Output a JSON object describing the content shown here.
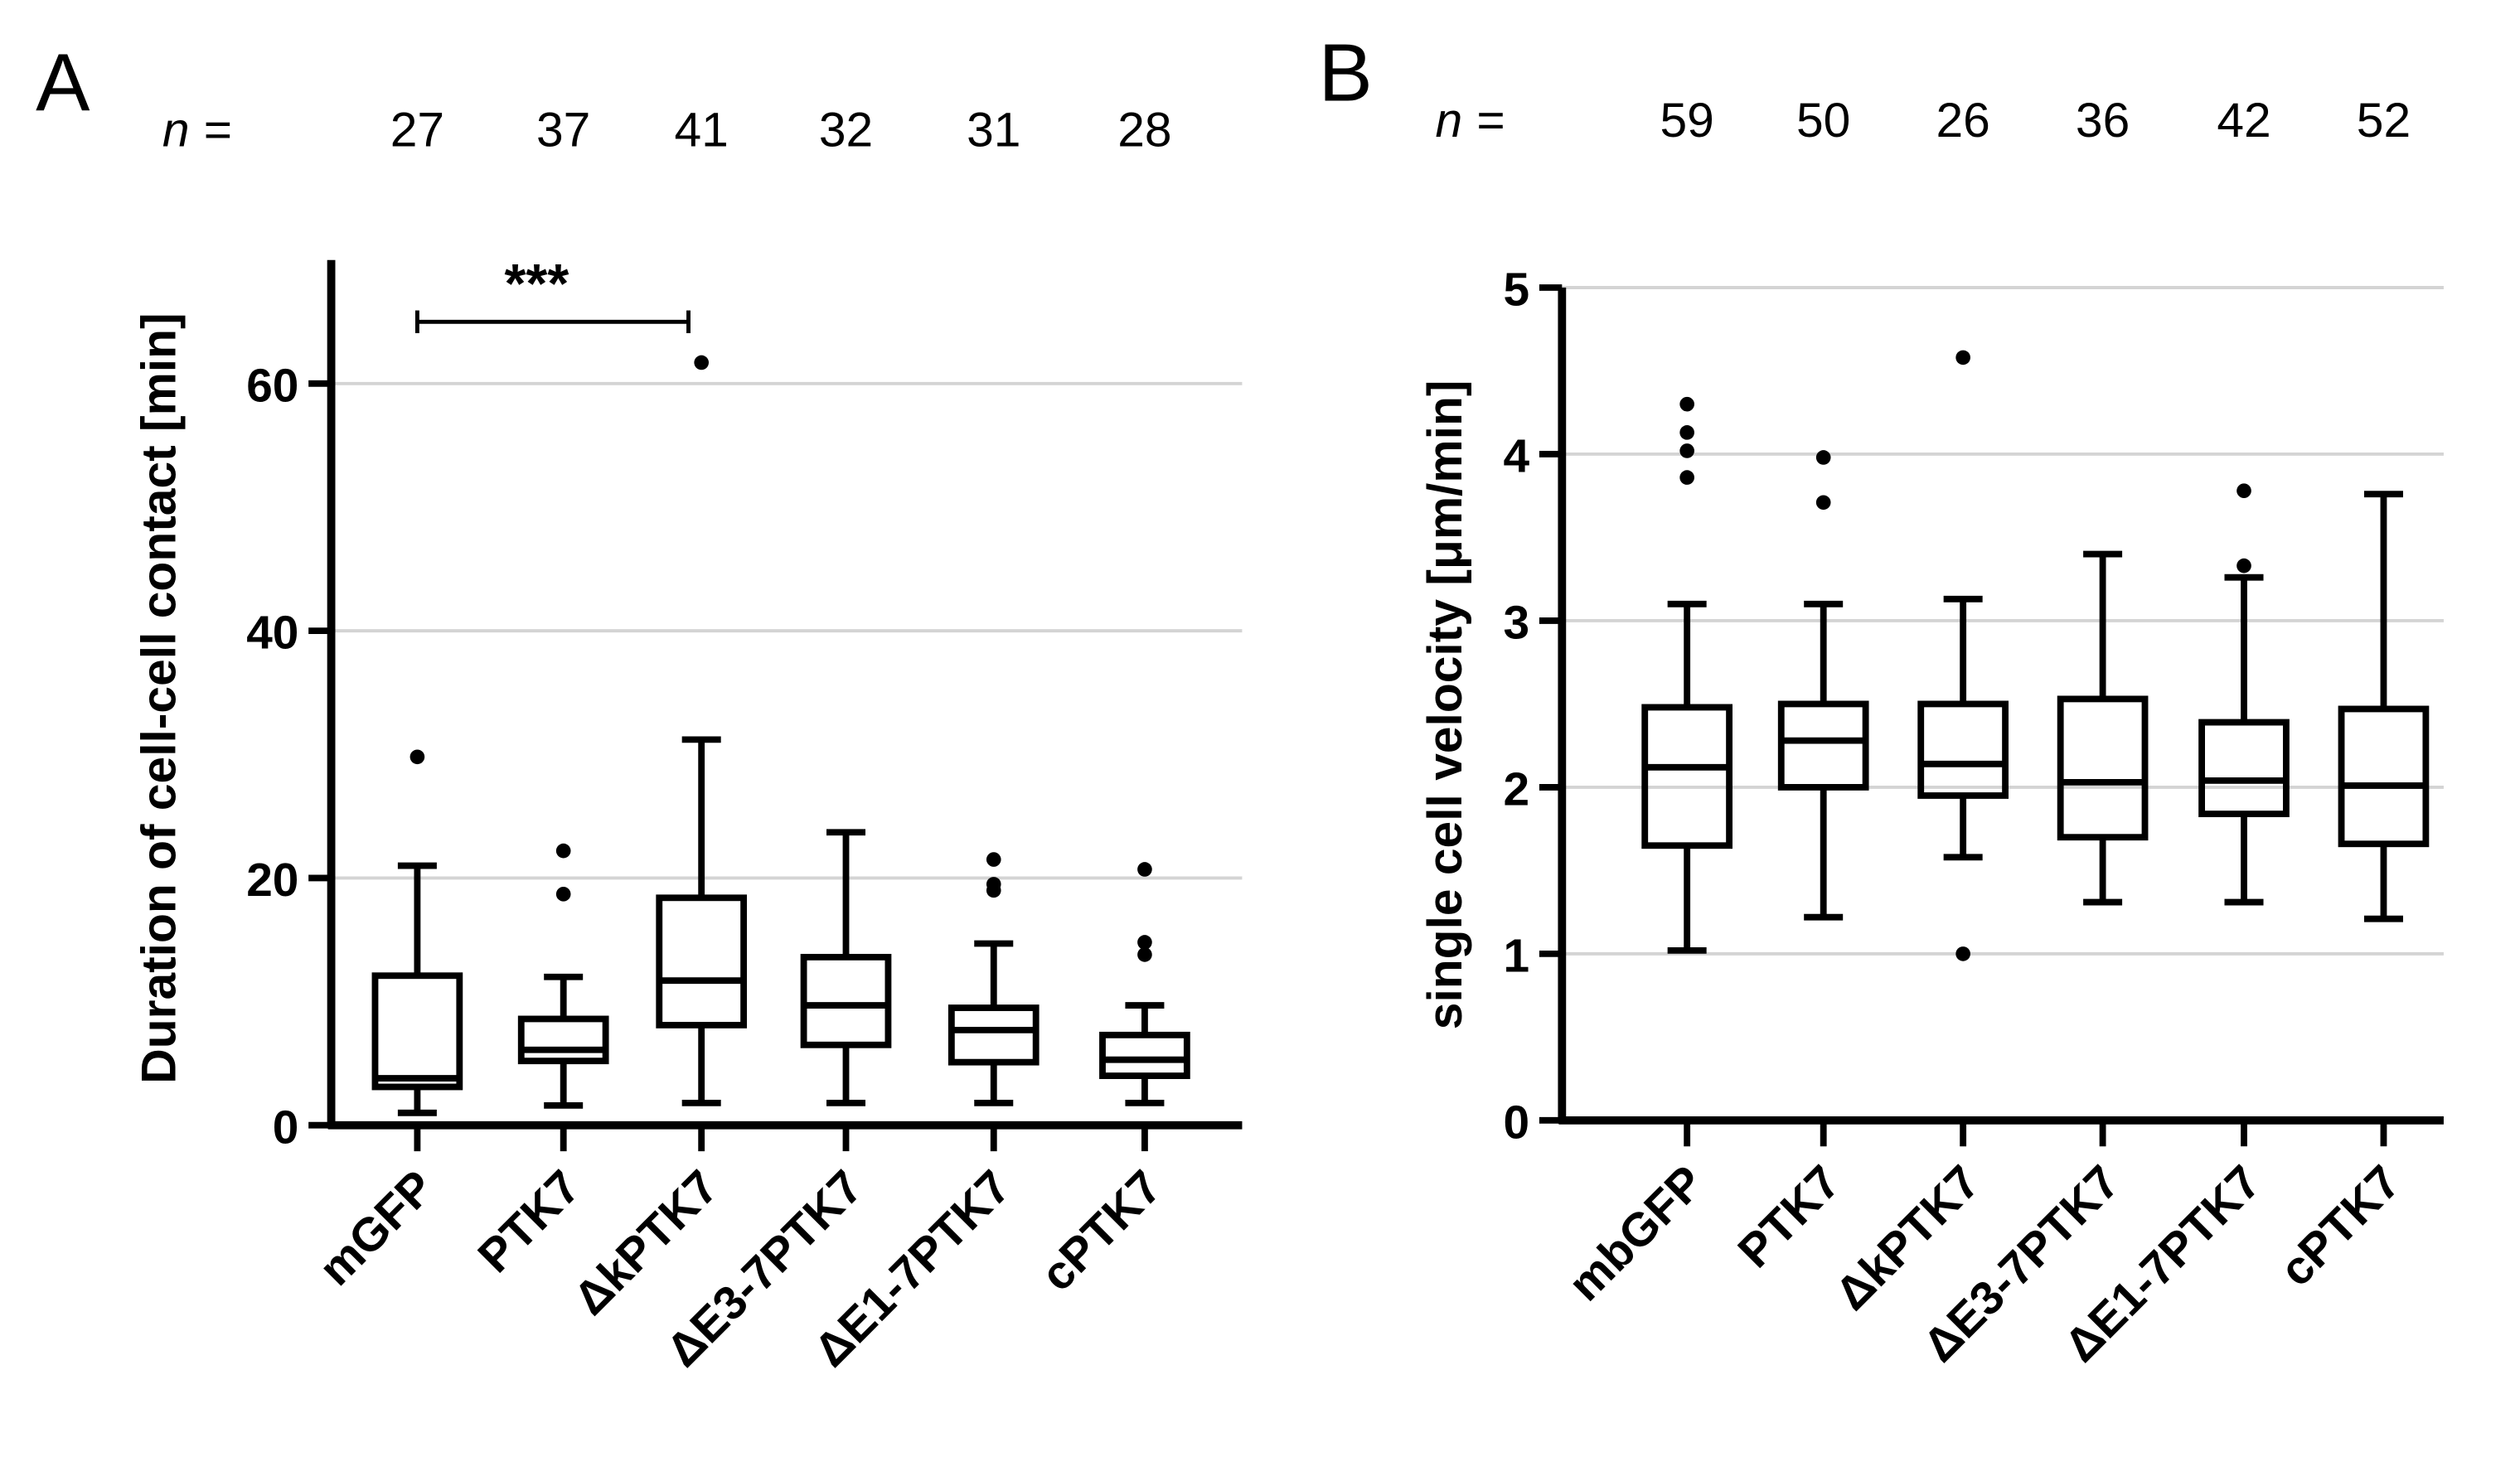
{
  "chart_data": [
    {
      "type": "box",
      "panel_label": "A",
      "n_label": "n =",
      "n": [
        "27",
        "37",
        "41",
        "32",
        "31",
        "28"
      ],
      "categories": [
        "mGFP",
        "PTK7",
        "ΔkPTK7",
        "ΔE3-7PTK7",
        "ΔE1-7PTK7",
        "cPTK7"
      ],
      "ylabel": "Duration of cell-cell contact [min]",
      "ylim": [
        0,
        70
      ],
      "yticks": [
        "0",
        "20",
        "40",
        "60"
      ],
      "grid": true,
      "significance": {
        "from": 0,
        "to": 2,
        "label": "***"
      },
      "boxes": [
        {
          "low": 1.0,
          "q1": 3.1,
          "median": 3.8,
          "q3": 12.1,
          "high": 21.0,
          "outliers": [
            29.8
          ]
        },
        {
          "low": 1.6,
          "q1": 5.2,
          "median": 6.1,
          "q3": 8.6,
          "high": 12.0,
          "outliers": [
            18.7,
            22.2
          ]
        },
        {
          "low": 1.8,
          "q1": 8.1,
          "median": 11.7,
          "q3": 18.4,
          "high": 31.2,
          "outliers": [
            61.7
          ]
        },
        {
          "low": 1.8,
          "q1": 6.5,
          "median": 9.7,
          "q3": 13.6,
          "high": 23.7,
          "outliers": []
        },
        {
          "low": 1.8,
          "q1": 5.1,
          "median": 7.7,
          "q3": 9.5,
          "high": 14.7,
          "outliers": [
            19.0,
            19.5,
            21.5
          ]
        },
        {
          "low": 1.8,
          "q1": 4.0,
          "median": 5.3,
          "q3": 7.3,
          "high": 9.7,
          "outliers": [
            13.8,
            14.8,
            20.7
          ]
        }
      ]
    },
    {
      "type": "box",
      "panel_label": "B",
      "n_label": "n =",
      "n": [
        "59",
        "50",
        "26",
        "36",
        "42",
        "52"
      ],
      "categories": [
        "mbGFP",
        "PTK7",
        "ΔkPTK7",
        "ΔE3-7PTK7",
        "ΔE1-7PTK7",
        "cPTK7"
      ],
      "ylabel": "single cell velocity [μm/min]",
      "ylim": [
        0,
        5
      ],
      "yticks": [
        "0",
        "1",
        "2",
        "3",
        "4",
        "5"
      ],
      "grid": true,
      "boxes": [
        {
          "low": 1.02,
          "q1": 1.65,
          "median": 2.12,
          "q3": 2.48,
          "high": 3.1,
          "outliers": [
            3.86,
            4.02,
            4.13,
            4.3
          ]
        },
        {
          "low": 1.22,
          "q1": 2.0,
          "median": 2.28,
          "q3": 2.5,
          "high": 3.1,
          "outliers": [
            3.71,
            3.98
          ]
        },
        {
          "low": 1.58,
          "q1": 1.95,
          "median": 2.14,
          "q3": 2.5,
          "high": 3.13,
          "outliers": [
            1.0,
            4.58
          ]
        },
        {
          "low": 1.31,
          "q1": 1.7,
          "median": 2.03,
          "q3": 2.53,
          "high": 3.4,
          "outliers": []
        },
        {
          "low": 1.31,
          "q1": 1.84,
          "median": 2.04,
          "q3": 2.39,
          "high": 3.26,
          "outliers": [
            3.33,
            3.78
          ]
        },
        {
          "low": 1.21,
          "q1": 1.66,
          "median": 2.01,
          "q3": 2.47,
          "high": 3.76,
          "outliers": []
        }
      ]
    }
  ]
}
